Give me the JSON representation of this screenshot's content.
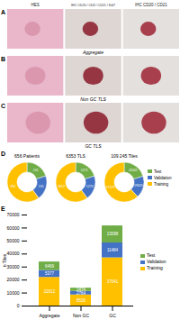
{
  "image_panels": [
    {
      "letter": "A",
      "headers": [
        "HES",
        "IHC CD20 / CD3 / CD21 / Ki67",
        "IHC CD20 / CD21"
      ],
      "caption": "Aggregate"
    },
    {
      "letter": "B",
      "caption": "Non GC TLS"
    },
    {
      "letter": "C",
      "caption": "GC TLS"
    }
  ],
  "chart_data": [
    {
      "type": "pie",
      "panel": "D",
      "title": "656 Patients",
      "categories": [
        "Test",
        "Validation",
        "Training"
      ],
      "values": [
        131,
        131,
        394
      ],
      "colors": [
        "#70ad47",
        "#4472c4",
        "#ffc000"
      ],
      "data_labels": true
    },
    {
      "type": "pie",
      "title": "6353 TLS",
      "categories": [
        "Test",
        "Validation",
        "Training"
      ],
      "values": [
        1271,
        1270,
        3812
      ],
      "colors": [
        "#70ad47",
        "#4472c4",
        "#ffc000"
      ],
      "data_labels": true
    },
    {
      "type": "pie",
      "title": "109 245 Tiles",
      "categories": [
        "Test",
        "Validation",
        "Training"
      ],
      "values": [
        22041,
        19625,
        67579
      ],
      "colors": [
        "#70ad47",
        "#4472c4",
        "#ffc000"
      ],
      "data_labels": true,
      "legend": "right"
    },
    {
      "type": "bar",
      "panel": "E",
      "stacked": true,
      "data_labels": true,
      "legend": "right",
      "y_label": "n Tiles",
      "categories": [
        "Aggregate",
        "Non GC",
        "GC"
      ],
      "series": [
        {
          "name": "Training",
          "color": "#ffc000",
          "values": [
            22012,
            8526,
            37041
          ]
        },
        {
          "name": "Validation",
          "color": "#4472c4",
          "values": [
            5377,
            2764,
            11484
          ]
        },
        {
          "name": "Test",
          "color": "#70ad47",
          "values": [
            6469,
            2474,
            13098
          ]
        }
      ],
      "ylim": [
        0,
        70000
      ],
      "yticks": [
        0,
        10000,
        20000,
        30000,
        40000,
        50000,
        60000,
        70000
      ]
    }
  ]
}
